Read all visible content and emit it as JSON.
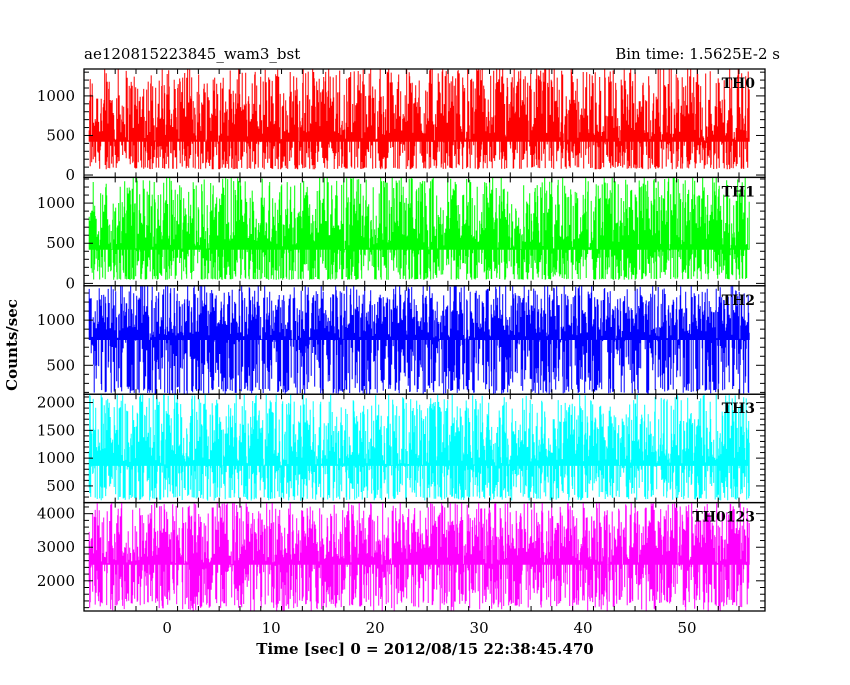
{
  "chart_data": {
    "type": "line",
    "title": "ae120815223845_wam3_bst",
    "subtitle": "Bin time: 1.5625E-2 s",
    "xlabel": "Time [sec] 0 = 2012/08/15 22:38:45.470",
    "ylabel": "Counts/sec",
    "xlim": [
      -8,
      57.5
    ],
    "x_ticks": [
      0,
      10,
      20,
      30,
      40,
      50
    ],
    "x_range_data": [
      -7.5,
      56
    ],
    "grid": false,
    "panels": [
      {
        "name": "TH0",
        "color": "#ff0000",
        "ylim": [
          -30,
          1340
        ],
        "y_ticks": [
          0,
          500,
          1000
        ],
        "mean": 420,
        "noise_low": 80,
        "noise_high": 1340
      },
      {
        "name": "TH1",
        "color": "#00ff00",
        "ylim": [
          -30,
          1320
        ],
        "y_ticks": [
          0,
          500,
          1000
        ],
        "mean": 420,
        "noise_low": 50,
        "noise_high": 1320
      },
      {
        "name": "TH2",
        "color": "#0000ff",
        "ylim": [
          180,
          1380
        ],
        "y_ticks": [
          500,
          1000
        ],
        "mean": 780,
        "noise_low": 200,
        "noise_high": 1380
      },
      {
        "name": "TH3",
        "color": "#00ffff",
        "ylim": [
          200,
          2150
        ],
        "y_ticks": [
          500,
          1000,
          1500,
          2000
        ],
        "mean": 860,
        "noise_low": 260,
        "noise_high": 2100
      },
      {
        "name": "TH0123",
        "color": "#ff00ff",
        "ylim": [
          1100,
          4330
        ],
        "y_ticks": [
          2000,
          3000,
          4000
        ],
        "mean": 2480,
        "noise_low": 1200,
        "noise_high": 4300
      }
    ]
  }
}
